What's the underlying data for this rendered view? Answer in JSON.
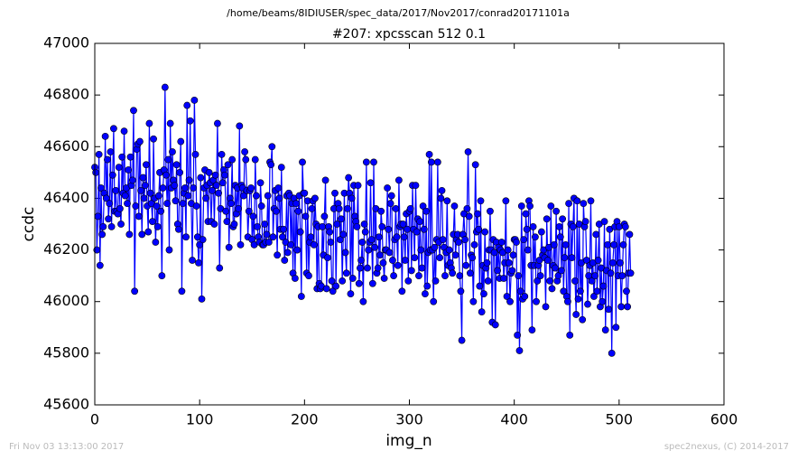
{
  "chart_data": {
    "type": "line",
    "suptitle": "/home/beams/8IDIUSER/spec_data/2017/Nov2017/conrad20171101a",
    "title": "#207: xpcsscan 512 0.1",
    "xlabel": "img_n",
    "ylabel": "ccdc",
    "footer_left": "Fri Nov 03 13:13:00 2017",
    "footer_right": "spec2nexus, (C) 2014-2017",
    "color": "#0000ff",
    "xlim": [
      0,
      600
    ],
    "xticks": [
      0,
      100,
      200,
      300,
      400,
      500,
      600
    ],
    "ylim": [
      45600,
      47000
    ],
    "yticks": [
      45600,
      45800,
      46000,
      46200,
      46400,
      46600,
      46800,
      47000
    ],
    "x": [
      0,
      1,
      2,
      3,
      4,
      5,
      6,
      7,
      8,
      9,
      10,
      11,
      12,
      13,
      14,
      15,
      16,
      17,
      18,
      19,
      20,
      21,
      22,
      23,
      24,
      25,
      26,
      27,
      28,
      29,
      30,
      31,
      32,
      33,
      34,
      35,
      36,
      37,
      38,
      39,
      40,
      41,
      42,
      43,
      44,
      45,
      46,
      47,
      48,
      49,
      50,
      51,
      52,
      53,
      54,
      55,
      56,
      57,
      58,
      59,
      60,
      61,
      62,
      63,
      64,
      65,
      66,
      67,
      68,
      69,
      70,
      71,
      72,
      73,
      74,
      75,
      76,
      77,
      78,
      79,
      80,
      81,
      82,
      83,
      84,
      85,
      86,
      87,
      88,
      89,
      90,
      91,
      92,
      93,
      94,
      95,
      96,
      97,
      98,
      99,
      100,
      101,
      102,
      103,
      104,
      105,
      106,
      107,
      108,
      109,
      110,
      111,
      112,
      113,
      114,
      115,
      116,
      117,
      118,
      119,
      120,
      121,
      122,
      123,
      124,
      125,
      126,
      127,
      128,
      129,
      130,
      131,
      132,
      133,
      134,
      135,
      136,
      137,
      138,
      139,
      140,
      141,
      142,
      143,
      144,
      145,
      146,
      147,
      148,
      149,
      150,
      151,
      152,
      153,
      154,
      155,
      156,
      157,
      158,
      159,
      160,
      161,
      162,
      163,
      164,
      165,
      166,
      167,
      168,
      169,
      170,
      171,
      172,
      173,
      174,
      175,
      176,
      177,
      178,
      179,
      180,
      181,
      182,
      183,
      184,
      185,
      186,
      187,
      188,
      189,
      190,
      191,
      192,
      193,
      194,
      195,
      196,
      197,
      198,
      199,
      200,
      201,
      202,
      203,
      204,
      205,
      206,
      207,
      208,
      209,
      210,
      211,
      212,
      213,
      214,
      215,
      216,
      217,
      218,
      219,
      220,
      221,
      222,
      223,
      224,
      225,
      226,
      227,
      228,
      229,
      230,
      231,
      232,
      233,
      234,
      235,
      236,
      237,
      238,
      239,
      240,
      241,
      242,
      243,
      244,
      245,
      246,
      247,
      248,
      249,
      250,
      251,
      252,
      253,
      254,
      255,
      256,
      257,
      258,
      259,
      260,
      261,
      262,
      263,
      264,
      265,
      266,
      267,
      268,
      269,
      270,
      271,
      272,
      273,
      274,
      275,
      276,
      277,
      278,
      279,
      280,
      281,
      282,
      283,
      284,
      285,
      286,
      287,
      288,
      289,
      290,
      291,
      292,
      293,
      294,
      295,
      296,
      297,
      298,
      299,
      300,
      301,
      302,
      303,
      304,
      305,
      306,
      307,
      308,
      309,
      310,
      311,
      312,
      313,
      314,
      315,
      316,
      317,
      318,
      319,
      320,
      321,
      322,
      323,
      324,
      325,
      326,
      327,
      328,
      329,
      330,
      331,
      332,
      333,
      334,
      335,
      336,
      337,
      338,
      339,
      340,
      341,
      342,
      343,
      344,
      345,
      346,
      347,
      348,
      349,
      350,
      351,
      352,
      353,
      354,
      355,
      356,
      357,
      358,
      359,
      360,
      361,
      362,
      363,
      364,
      365,
      366,
      367,
      368,
      369,
      370,
      371,
      372,
      373,
      374,
      375,
      376,
      377,
      378,
      379,
      380,
      381,
      382,
      383,
      384,
      385,
      386,
      387,
      388,
      389,
      390,
      391,
      392,
      393,
      394,
      395,
      396,
      397,
      398,
      399,
      400,
      401,
      402,
      403,
      404,
      405,
      406,
      407,
      408,
      409,
      410,
      411,
      412,
      413,
      414,
      415,
      416,
      417,
      418,
      419,
      420,
      421,
      422,
      423,
      424,
      425,
      426,
      427,
      428,
      429,
      430,
      431,
      432,
      433,
      434,
      435,
      436,
      437,
      438,
      439,
      440,
      441,
      442,
      443,
      444,
      445,
      446,
      447,
      448,
      449,
      450,
      451,
      452,
      453,
      454,
      455,
      456,
      457,
      458,
      459,
      460,
      461,
      462,
      463,
      464,
      465,
      466,
      467,
      468,
      469,
      470,
      471,
      472,
      473,
      474,
      475,
      476,
      477,
      478,
      479,
      480,
      481,
      482,
      483,
      484,
      485,
      486,
      487,
      488,
      489,
      490,
      491,
      492,
      493,
      494,
      495,
      496,
      497,
      498,
      499,
      500,
      501,
      502,
      503,
      504,
      505,
      506,
      507,
      508,
      509,
      510,
      511
    ],
    "values": [
      46520,
      46500,
      46200,
      46330,
      46570,
      46140,
      46440,
      46260,
      46290,
      46420,
      46640,
      46400,
      46550,
      46320,
      46380,
      46580,
      46290,
      46490,
      46670,
      46350,
      46430,
      46350,
      46340,
      46520,
      46360,
      46300,
      46560,
      46420,
      46660,
      46410,
      46440,
      46380,
      46510,
      46260,
      46560,
      46450,
      46470,
      46740,
      46040,
      46370,
      46590,
      46610,
      46330,
      46620,
      46430,
      46260,
      46480,
      46400,
      46450,
      46530,
      46370,
      46270,
      46690,
      46420,
      46380,
      46310,
      46630,
      46400,
      46230,
      46370,
      46290,
      46410,
      46500,
      46350,
      46100,
      46440,
      46510,
      46830,
      46490,
      46380,
      46550,
      46200,
      46690,
      46440,
      46580,
      46470,
      46450,
      46390,
      46530,
      46300,
      46280,
      46500,
      46620,
      46040,
      46380,
      46420,
      46440,
      46250,
      46760,
      46410,
      46470,
      46700,
      46380,
      46160,
      46440,
      46780,
      46570,
      46370,
      46250,
      46150,
      46220,
      46480,
      46010,
      46240,
      46440,
      46510,
      46400,
      46450,
      46310,
      46500,
      46460,
      46310,
      46430,
      46470,
      46300,
      46490,
      46450,
      46690,
      46420,
      46130,
      46360,
      46570,
      46460,
      46510,
      46490,
      46350,
      46310,
      46530,
      46210,
      46400,
      46380,
      46550,
      46290,
      46300,
      46450,
      46340,
      46440,
      46360,
      46680,
      46220,
      46450,
      46440,
      46410,
      46580,
      46550,
      46430,
      46250,
      46350,
      46430,
      46440,
      46240,
      46330,
      46220,
      46550,
      46410,
      46290,
      46250,
      46230,
      46460,
      46370,
      46220,
      46220,
      46300,
      46230,
      46260,
      46410,
      46230,
      46540,
      46530,
      46600,
      46250,
      46360,
      46430,
      46350,
      46180,
      46440,
      46400,
      46280,
      46520,
      46250,
      46280,
      46160,
      46230,
      46410,
      46190,
      46420,
      46410,
      46220,
      46380,
      46110,
      46400,
      46090,
      46380,
      46200,
      46350,
      46410,
      46270,
      46020,
      46540,
      46420,
      46420,
      46330,
      46110,
      46390,
      46100,
      46230,
      46250,
      46360,
      46390,
      46220,
      46400,
      46300,
      46050,
      46290,
      46070,
      46050,
      46060,
      46290,
      46180,
      46330,
      46470,
      46050,
      46170,
      46290,
      46270,
      46230,
      46080,
      46040,
      46360,
      46420,
      46060,
      46300,
      46380,
      46360,
      46240,
      46320,
      46080,
      46260,
      46420,
      46190,
      46110,
      46360,
      46480,
      46420,
      46030,
      46400,
      46090,
      46450,
      46330,
      46310,
      46290,
      46450,
      46070,
      46130,
      46160,
      46230,
      46000,
      46300,
      46270,
      46540,
      46130,
      46200,
      46230,
      46460,
      46240,
      46070,
      46540,
      46210,
      46360,
      46110,
      46130,
      46250,
      46180,
      46350,
      46290,
      46150,
      46090,
      46200,
      46200,
      46440,
      46280,
      46190,
      46380,
      46410,
      46160,
      46100,
      46240,
      46360,
      46250,
      46140,
      46470,
      46290,
      46300,
      46040,
      46300,
      46250,
      46160,
      46340,
      46280,
      46080,
      46350,
      46360,
      46120,
      46450,
      46280,
      46170,
      46450,
      46270,
      46320,
      46100,
      46310,
      46200,
      46130,
      46370,
      46280,
      46030,
      46350,
      46060,
      46190,
      46570,
      46200,
      46540,
      46200,
      46000,
      46210,
      46080,
      46240,
      46540,
      46230,
      46170,
      46400,
      46430,
      46240,
      46210,
      46100,
      46190,
      46390,
      46140,
      46200,
      46150,
      46130,
      46110,
      46260,
      46370,
      46180,
      46240,
      46260,
      46230,
      46100,
      46040,
      45850,
      46260,
      46340,
      46240,
      46140,
      46360,
      46580,
      46330,
      46110,
      46180,
      46170,
      46000,
      46220,
      46530,
      46270,
      46340,
      46280,
      46060,
      46390,
      45960,
      46140,
      46030,
      46270,
      46130,
      46150,
      46080,
      46200,
      46350,
      46200,
      45920,
      46240,
      46190,
      45910,
      46230,
      46120,
      46210,
      46090,
      46200,
      46230,
      46190,
      46090,
      46150,
      46390,
      46020,
      46200,
      46150,
      46000,
      46110,
      46120,
      46180,
      46240,
      46240,
      46230,
      45870,
      46100,
      45810,
      46040,
      46370,
      46010,
      46240,
      46020,
      46340,
      46280,
      46200,
      46390,
      46370,
      46140,
      45890,
      46290,
      46140,
      46250,
      46000,
      46080,
      46140,
      46160,
      46100,
      46270,
      46180,
      46200,
      46170,
      45980,
      46320,
      46160,
      46210,
      46080,
      46370,
      46050,
      46140,
      46220,
      46130,
      46350,
      46080,
      46100,
      46290,
      46250,
      46120,
      46320,
      46040,
      46170,
      46220,
      46020,
      46000,
      46380,
      45870,
      46300,
      46170,
      46290,
      46400,
      46080,
      45950,
      46390,
      46010,
      46300,
      46040,
      46150,
      45930,
      46380,
      46290,
      46310,
      46160,
      45990,
      46100,
      46140,
      46390,
      46080,
      46150,
      46020,
      46100,
      46260,
      46040,
      46160,
      46300,
      45980,
      46130,
      46000,
      46060,
      46310,
      45890,
      46120,
      46220,
      45970,
      46280,
      46110,
      45800,
      46150,
      46220,
      46290,
      45900,
      46310,
      46100,
      46290,
      46150,
      45980,
      46100,
      46220,
      46300,
      46290,
      46040,
      45980,
      46110,
      46260,
      46110
    ]
  }
}
